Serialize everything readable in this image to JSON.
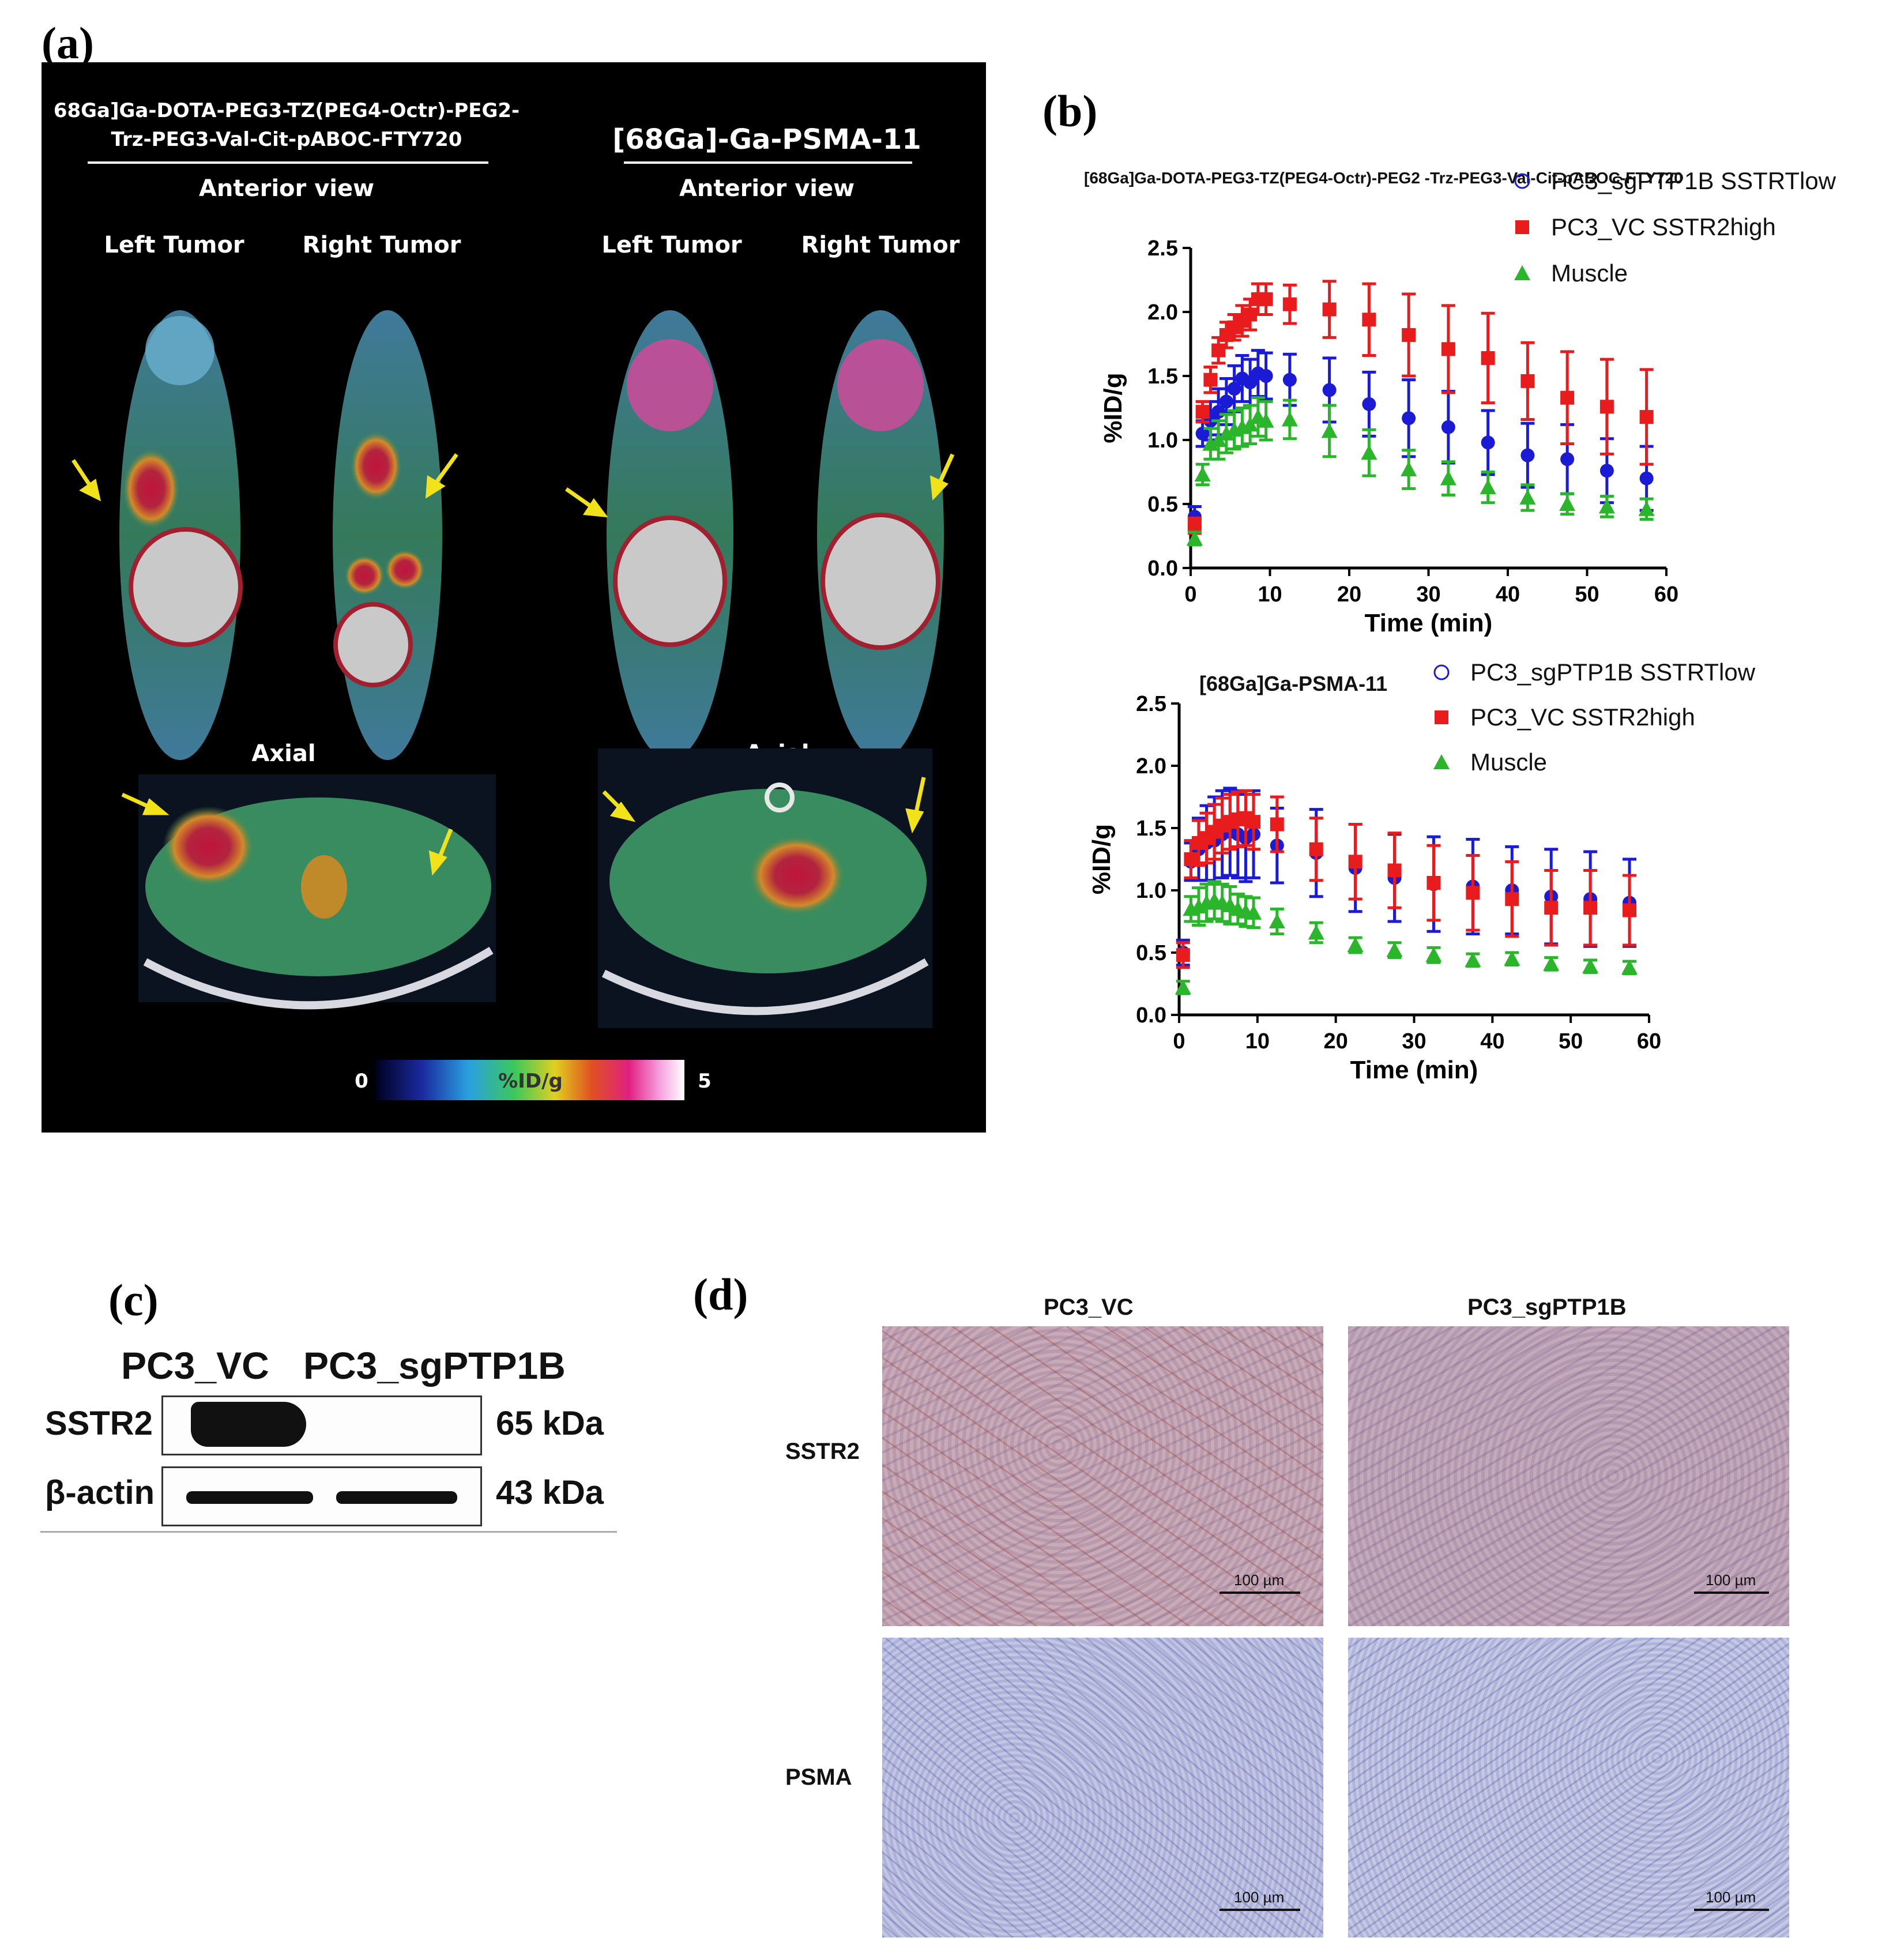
{
  "figure": {
    "panel_a_letter": "(a)",
    "panel_b_letter": "(b)",
    "panel_c_letter": "(c)",
    "panel_d_letter": "(d)"
  },
  "panel_a": {
    "left_title_line1": "68Ga]Ga-DOTA-PEG3-TZ(PEG4-Octr)-PEG2-",
    "left_title_line2": "Trz-PEG3-Val-Cit-pABOC-FTY720",
    "right_title": "[68Ga]-Ga-PSMA-11",
    "left_view": "Anterior view",
    "right_view": "Anterior view",
    "left_tumor_1": "Left Tumor",
    "right_tumor_1": "Right Tumor",
    "left_tumor_2": "Left Tumor",
    "right_tumor_2": "Right Tumor",
    "axial_1": "Axial",
    "axial_2": "Axial",
    "colorbar_min": "0",
    "colorbar_label": "%ID/g",
    "colorbar_max": "5"
  },
  "chart_data": [
    {
      "type": "scatter",
      "title": "[68Ga]Ga-DOTA-PEG3-TZ(PEG4-Octr)-PEG2 -Trz-PEG3-Val-Cit-pABOC-FTY720",
      "xlabel": "Time (min)",
      "ylabel": "%ID/g",
      "xlim": [
        0,
        60
      ],
      "ylim": [
        0,
        2.5
      ],
      "xticks": [
        "0",
        "10",
        "20",
        "30",
        "40",
        "50",
        "60"
      ],
      "yticks": [
        "0.0",
        "0.5",
        "1.0",
        "1.5",
        "2.0",
        "2.5"
      ],
      "legend": "top-right",
      "series": [
        {
          "name": "PC3_sgPTP1B SSTRTlow",
          "color": "#1b1bd6",
          "x": [
            0.5,
            1.5,
            2.5,
            3.5,
            4.5,
            5.5,
            6.5,
            7.5,
            8.5,
            9.5,
            12.5,
            17.5,
            22.5,
            27.5,
            32.5,
            37.5,
            42.5,
            47.5,
            52.5,
            57.5
          ],
          "y": [
            0.4,
            1.05,
            1.15,
            1.22,
            1.3,
            1.4,
            1.48,
            1.45,
            1.52,
            1.5,
            1.47,
            1.39,
            1.28,
            1.17,
            1.1,
            0.98,
            0.88,
            0.85,
            0.76,
            0.7
          ],
          "err": [
            0.08,
            0.1,
            0.15,
            0.18,
            0.18,
            0.18,
            0.18,
            0.18,
            0.18,
            0.18,
            0.2,
            0.25,
            0.25,
            0.3,
            0.28,
            0.25,
            0.25,
            0.27,
            0.25,
            0.25
          ]
        },
        {
          "name": "PC3_VC SSTR2high",
          "color": "#e81c1c",
          "x": [
            0.5,
            1.5,
            2.5,
            3.5,
            4.5,
            5.5,
            6.5,
            7.5,
            8.5,
            9.5,
            12.5,
            17.5,
            22.5,
            27.5,
            32.5,
            37.5,
            42.5,
            47.5,
            52.5,
            57.5
          ],
          "y": [
            0.33,
            1.22,
            1.47,
            1.7,
            1.82,
            1.88,
            1.93,
            1.98,
            2.1,
            2.1,
            2.06,
            2.02,
            1.94,
            1.82,
            1.71,
            1.64,
            1.46,
            1.33,
            1.26,
            1.18
          ],
          "err": [
            0.06,
            0.08,
            0.1,
            0.1,
            0.1,
            0.1,
            0.12,
            0.12,
            0.12,
            0.12,
            0.15,
            0.22,
            0.28,
            0.32,
            0.34,
            0.35,
            0.3,
            0.36,
            0.37,
            0.37
          ]
        },
        {
          "name": "Muscle",
          "color": "#2ab52a",
          "x": [
            0.5,
            1.5,
            2.5,
            3.5,
            4.5,
            5.5,
            6.5,
            7.5,
            8.5,
            9.5,
            12.5,
            17.5,
            22.5,
            27.5,
            32.5,
            37.5,
            42.5,
            47.5,
            52.5,
            57.5
          ],
          "y": [
            0.23,
            0.73,
            0.97,
            1.0,
            1.05,
            1.08,
            1.1,
            1.12,
            1.18,
            1.15,
            1.16,
            1.07,
            0.9,
            0.77,
            0.7,
            0.63,
            0.55,
            0.5,
            0.48,
            0.46
          ],
          "err": [
            0.05,
            0.08,
            0.12,
            0.15,
            0.15,
            0.15,
            0.15,
            0.15,
            0.15,
            0.15,
            0.15,
            0.2,
            0.18,
            0.15,
            0.13,
            0.12,
            0.1,
            0.08,
            0.08,
            0.08
          ]
        }
      ]
    },
    {
      "type": "scatter",
      "title": "[68Ga]Ga-PSMA-11",
      "xlabel": "Time (min)",
      "ylabel": "%ID/g",
      "xlim": [
        0,
        60
      ],
      "ylim": [
        0,
        2.5
      ],
      "xticks": [
        "0",
        "10",
        "20",
        "30",
        "40",
        "50",
        "60"
      ],
      "yticks": [
        "0.0",
        "0.5",
        "1.0",
        "1.5",
        "2.0",
        "2.5"
      ],
      "legend": "top-right",
      "series": [
        {
          "name": "PC3_sgPTP1B SSTRTlow",
          "color": "#1b1bd6",
          "x": [
            0.5,
            1.5,
            2.5,
            3.5,
            4.5,
            5.5,
            6.5,
            7.5,
            8.5,
            9.5,
            12.5,
            17.5,
            22.5,
            27.5,
            32.5,
            37.5,
            42.5,
            47.5,
            52.5,
            57.5
          ],
          "y": [
            0.5,
            1.23,
            1.33,
            1.38,
            1.4,
            1.45,
            1.47,
            1.45,
            1.42,
            1.45,
            1.36,
            1.3,
            1.18,
            1.1,
            1.05,
            1.03,
            1.0,
            0.95,
            0.93,
            0.9
          ],
          "err": [
            0.1,
            0.15,
            0.25,
            0.3,
            0.35,
            0.35,
            0.35,
            0.35,
            0.35,
            0.35,
            0.3,
            0.35,
            0.35,
            0.35,
            0.38,
            0.38,
            0.35,
            0.38,
            0.38,
            0.35
          ]
        },
        {
          "name": "PC3_VC SSTR2high",
          "color": "#e81c1c",
          "x": [
            0.5,
            1.5,
            2.5,
            3.5,
            4.5,
            5.5,
            6.5,
            7.5,
            8.5,
            9.5,
            12.5,
            17.5,
            22.5,
            27.5,
            32.5,
            37.5,
            42.5,
            47.5,
            52.5,
            57.5
          ],
          "y": [
            0.48,
            1.25,
            1.38,
            1.42,
            1.47,
            1.52,
            1.55,
            1.57,
            1.58,
            1.55,
            1.53,
            1.33,
            1.23,
            1.16,
            1.06,
            0.98,
            0.93,
            0.86,
            0.86,
            0.84
          ],
          "err": [
            0.1,
            0.15,
            0.18,
            0.2,
            0.22,
            0.22,
            0.22,
            0.22,
            0.22,
            0.22,
            0.22,
            0.25,
            0.3,
            0.3,
            0.3,
            0.3,
            0.3,
            0.3,
            0.3,
            0.28
          ]
        },
        {
          "name": "Muscle",
          "color": "#2ab52a",
          "x": [
            0.5,
            1.5,
            2.5,
            3.5,
            4.5,
            5.5,
            6.5,
            7.5,
            8.5,
            9.5,
            12.5,
            17.5,
            22.5,
            27.5,
            32.5,
            37.5,
            42.5,
            47.5,
            52.5,
            57.5
          ],
          "y": [
            0.22,
            0.85,
            0.87,
            0.9,
            0.92,
            0.9,
            0.88,
            0.85,
            0.83,
            0.82,
            0.75,
            0.66,
            0.56,
            0.52,
            0.48,
            0.44,
            0.45,
            0.41,
            0.39,
            0.38
          ],
          "err": [
            0.05,
            0.1,
            0.15,
            0.15,
            0.15,
            0.15,
            0.15,
            0.12,
            0.12,
            0.12,
            0.1,
            0.08,
            0.06,
            0.06,
            0.06,
            0.05,
            0.05,
            0.05,
            0.05,
            0.05
          ]
        }
      ]
    }
  ],
  "panel_c": {
    "lane_1": "PC3_VC",
    "lane_2": "PC3_sgPTP1B",
    "row_1": "SSTR2",
    "row_2": "β-actin",
    "size_1": "65 kDa",
    "size_2": "43 kDa"
  },
  "panel_d": {
    "col_1": "PC3_VC",
    "col_2": "PC3_sgPTP1B",
    "row_1": "SSTR2",
    "row_2": "PSMA",
    "scale_1": "100 µm",
    "scale_2": "100 µm",
    "scale_3": "100 µm",
    "scale_4": "100 µm"
  }
}
